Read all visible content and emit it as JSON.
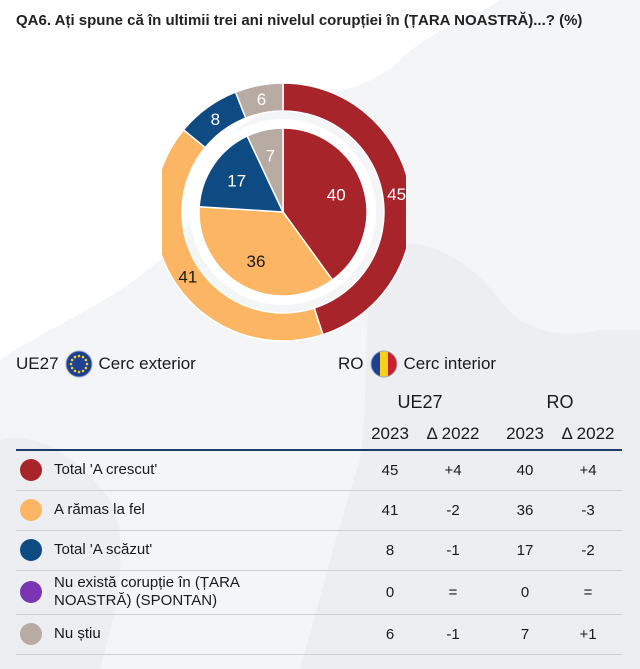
{
  "title": "QA6. Ați spune că în ultimii trei ani nivelul corupției în (ȚARA NOASTRĂ)...? (%)",
  "legend": {
    "eu_code": "UE27",
    "eu_label": "Cerc exterior",
    "ro_code": "RO",
    "ro_label": "Cerc interior"
  },
  "table": {
    "group_headers": [
      "UE27",
      "RO"
    ],
    "sub_headers": [
      "2023",
      "Δ 2022",
      "2023",
      "Δ 2022"
    ],
    "rows": [
      {
        "label": "Total 'A crescut'",
        "color": "#a6242a",
        "values": [
          "45",
          "+4",
          "40",
          "+4"
        ]
      },
      {
        "label": "A rămas la fel",
        "color": "#fbb563",
        "values": [
          "41",
          "-2",
          "36",
          "-3"
        ]
      },
      {
        "label": "Total 'A scăzut'",
        "color": "#0e4b82",
        "values": [
          "8",
          "-1",
          "17",
          "-2"
        ]
      },
      {
        "label": "Nu există corupție în (ȚARA NOASTRĂ) (SPONTAN)",
        "color": "#7a35b3",
        "values": [
          "0",
          "=",
          "0",
          "="
        ]
      },
      {
        "label": "Nu știu",
        "color": "#b8aba3",
        "values": [
          "6",
          "-1",
          "7",
          "+1"
        ]
      }
    ]
  },
  "chart_data": {
    "type": "pie",
    "categories": [
      "Total 'A crescut'",
      "A rămas la fel",
      "Total 'A scăzut'",
      "Nu există corupție în (ȚARA NOASTRĂ) (SPONTAN)",
      "Nu știu"
    ],
    "colors": [
      "#a6242a",
      "#fbb563",
      "#0e4b82",
      "#7a35b3",
      "#b8aba3"
    ],
    "series": [
      {
        "name": "Cerc exterior",
        "values": [
          45,
          41,
          8,
          0,
          6
        ]
      },
      {
        "name": "Cerc interior",
        "values": [
          40,
          36,
          17,
          0,
          7
        ]
      }
    ],
    "title": "QA6. Ați spune că în ultimii trei ani nivelul corupției în (ȚARA NOASTRĂ)...? (%)"
  }
}
